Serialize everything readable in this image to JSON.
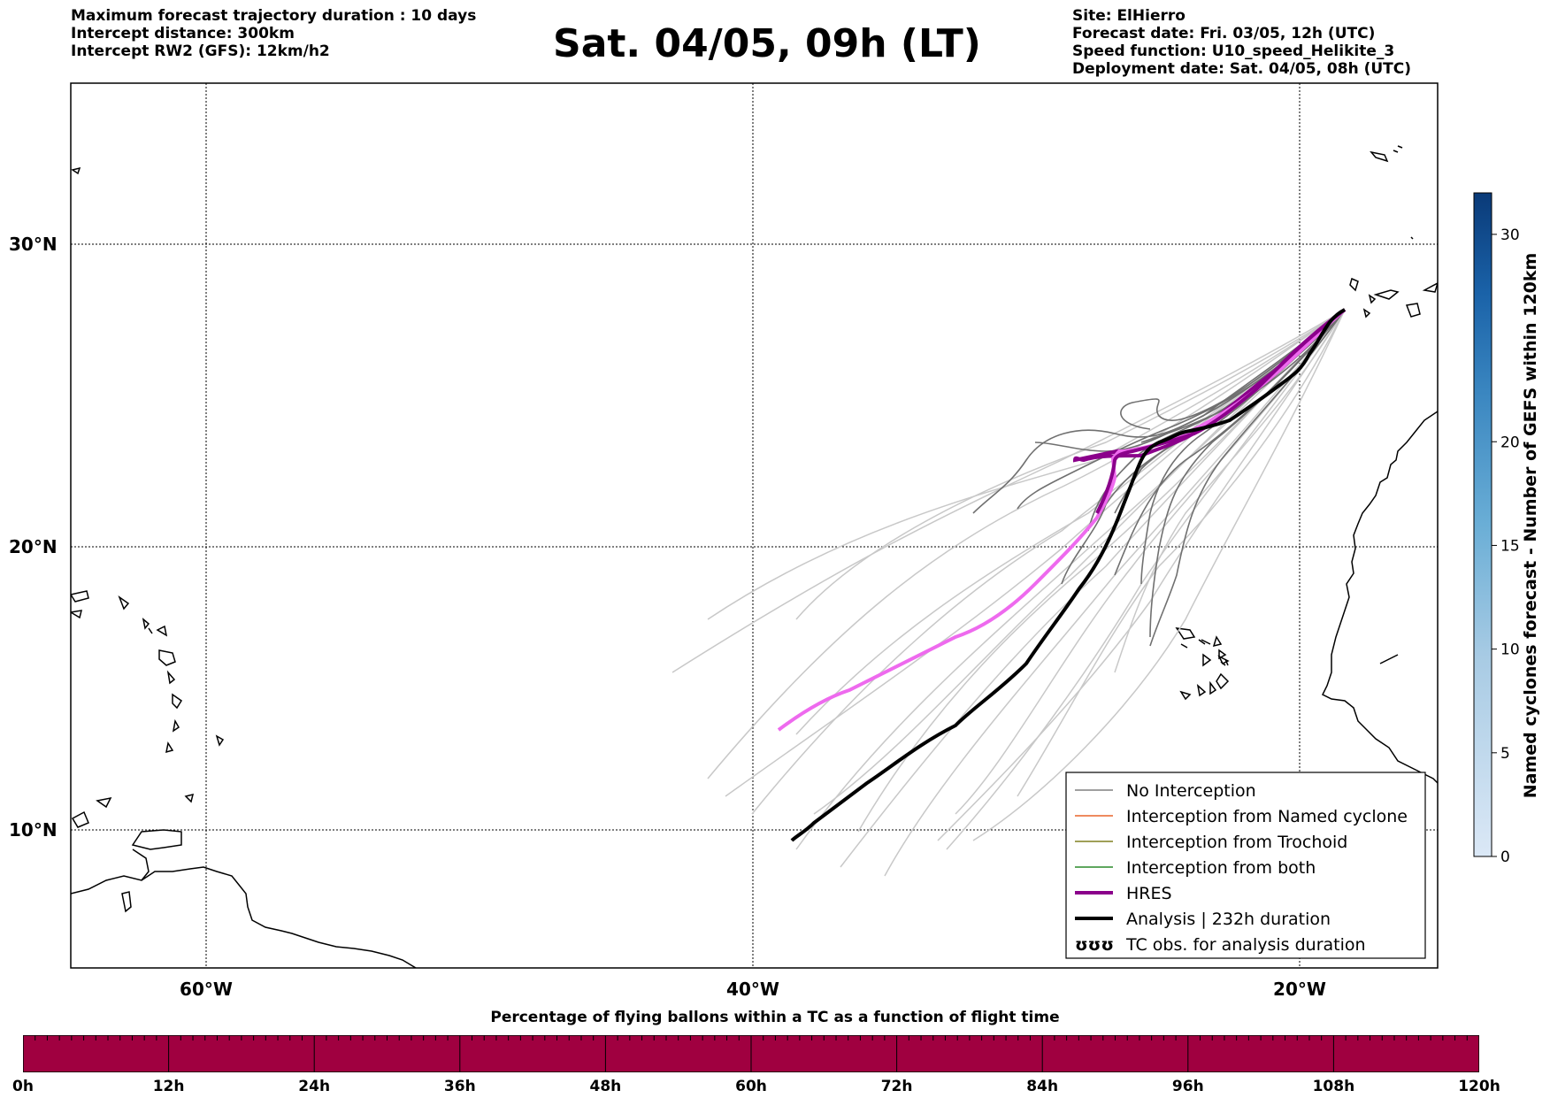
{
  "header": {
    "left_lines": [
      "Maximum forecast trajectory duration : 10 days",
      "Intercept distance: 300km",
      "Intercept RW2 (GFS):  12km/h2"
    ],
    "title": "Sat. 04/05, 09h (LT)",
    "right_lines": [
      "Site: ElHierro",
      "Forecast date: Fri. 03/05, 12h (UTC)",
      "Speed function: U10_speed_Helikite_3",
      "Deployment date: Sat. 04/05, 08h (UTC)"
    ]
  },
  "map": {
    "lat_labels": [
      "30°N",
      "20°N",
      "10°N"
    ],
    "lon_labels": [
      "60°W",
      "40°W",
      "20°W"
    ],
    "colors": {
      "ensemble_light": "#c8c8c8",
      "ensemble_dark": "#707070",
      "hres": "#8b008b",
      "hres_light": "#ee6aee",
      "analysis": "#000000",
      "coast": "#000000"
    }
  },
  "legend": {
    "items": [
      {
        "label": "No Interception",
        "color": "#808080",
        "style": "thin"
      },
      {
        "label": "Interception from Named cyclone",
        "color": "#e8642a",
        "style": "thin"
      },
      {
        "label": "Interception from Trochoid",
        "color": "#808020",
        "style": "thin"
      },
      {
        "label": "Interception from both",
        "color": "#2a8a2a",
        "style": "thin"
      },
      {
        "label": "HRES",
        "color": "#8b008b",
        "style": "thick"
      },
      {
        "label": "Analysis | 232h duration",
        "color": "#000000",
        "style": "thick"
      },
      {
        "label": "TC obs. for analysis duration",
        "color": "#000000",
        "style": "symbol",
        "symbol": "ʊʊʊ"
      }
    ]
  },
  "colorbar": {
    "label": "Named cyclones forecast - Number of GEFS within 120km",
    "ticks": [
      "0",
      "5",
      "10",
      "15",
      "20",
      "30"
    ],
    "tick_values": [
      0,
      5,
      10,
      15,
      20,
      30
    ],
    "max": 32
  },
  "time_bar": {
    "title": "Percentage of flying ballons within a TC as a function of flight time",
    "color": "#a00040",
    "labels": [
      "0h",
      "12h",
      "24h",
      "36h",
      "48h",
      "60h",
      "72h",
      "84h",
      "96h",
      "108h",
      "120h"
    ]
  }
}
